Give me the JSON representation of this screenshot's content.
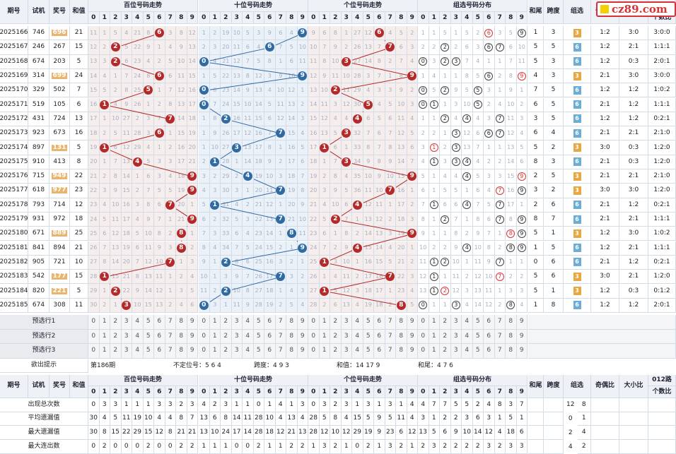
{
  "logo": {
    "text": "cz89.com"
  },
  "header": {
    "issue": "期号",
    "trial": "试机",
    "prize": "奖号",
    "sum": "和值",
    "hundreds": "百位号码走势",
    "tens": "十位号码走势",
    "units": "个位号码走势",
    "group_dist": "组选号码分布",
    "sum_tail": "和尾",
    "span": "跨度",
    "group": "组选",
    "odd_even": "奇偶比",
    "big_small": "大小比",
    "mod012": "012路",
    "mod012_b": "个数比"
  },
  "digits": [
    "0",
    "1",
    "2",
    "3",
    "4",
    "5",
    "6",
    "7",
    "8",
    "9"
  ],
  "chart_data": {
    "type": "table",
    "rows": [
      {
        "issue": "2025166",
        "trial": "746",
        "prize": "696",
        "sum": 21,
        "hl": true,
        "h": "11 1 5 4 21 8 6 3 8 12",
        "t": "1 2 19 10 5 3 9 6 4 9",
        "u": "9 6 8 1 27 12 6 4 5 2",
        "g": "1 1 5 1 5 2 6 3 5 9",
        "rg": [
          6
        ],
        "tail": "1",
        "span": "3",
        "grp": "3",
        "oe": "1:2",
        "bs": "3:0",
        "m": "3:0:0"
      },
      {
        "issue": "2025167",
        "trial": "246",
        "prize": "267",
        "sum": 15,
        "hl": false,
        "h": "12 2 2 5 22 9 1 4 9 13",
        "t": "2 3 20 11 6 4 6 7 5 10",
        "u": "10 7 9 2 26 13 7 7 6 3",
        "g": "2 2 6 2 6 3 6 7 6 10",
        "rg": [],
        "tail": "5",
        "span": "5",
        "grp": "6",
        "oe": "1:2",
        "bs": "2:1",
        "m": "1:1:1"
      },
      {
        "issue": "2025168",
        "trial": "674",
        "prize": "203",
        "sum": 5,
        "hl": false,
        "h": "13 3 2 6 23 4 2 5 10 14",
        "t": "0 4 21 12 7 5 8 1 6 11",
        "u": "11 8 10 3 27 14 8 2 7 4",
        "g": "0 3 2 3 7 4 1 1 7 11",
        "rg": [],
        "tail": "5",
        "span": "3",
        "grp": "6",
        "oe": "1:2",
        "bs": "0:3",
        "m": "2:0:1"
      },
      {
        "issue": "2025169",
        "trial": "314",
        "prize": "699",
        "sum": 24,
        "hl": true,
        "h": "14 4 1 7 24 8 6 6 11 15",
        "t": "1 5 22 13 8 12 3 9 10 9",
        "u": "12 9 11 10 28 3 7 1 8 9",
        "g": "1 4 1 1 8 5 6 2 8 9",
        "rg": [
          9
        ],
        "tail": "4",
        "span": "3",
        "grp": "3",
        "oe": "2:1",
        "bs": "3:0",
        "m": "3:0:0"
      },
      {
        "issue": "2025170",
        "trial": "329",
        "prize": "502",
        "sum": 7,
        "hl": false,
        "h": "15 5 2 8 25 5 1 7 12 16",
        "t": "0 6 23 14 9 13 4 10 12 1",
        "u": "13 10 2 11 29 4 3 3 9 2",
        "g": "0 5 2 9 5 6 3 1 9 1",
        "rg": [],
        "tail": "7",
        "span": "5",
        "grp": "6",
        "oe": "1:2",
        "bs": "1:2",
        "m": "1:0:2"
      },
      {
        "issue": "2025171",
        "trial": "519",
        "prize": "105",
        "sum": 6,
        "hl": false,
        "h": "16 1 4 9 26 1 2 8 13 17",
        "t": "0 7 24 15 10 14 5 11 13 2",
        "u": "14 11 3 12 30 5 4 5 10 3",
        "g": "0 1 1 3 10 5 2 4 10 2",
        "rg": [],
        "tail": "6",
        "span": "5",
        "grp": "6",
        "oe": "2:1",
        "bs": "1:2",
        "m": "1:1:1"
      },
      {
        "issue": "2025172",
        "trial": "431",
        "prize": "724",
        "sum": 13,
        "hl": false,
        "h": "17 1 10 27 2 3 7 1 14 18",
        "t": "1 8 2 16 11 15 6 12 14 3",
        "u": "15 12 4 4 31 6 5 6 11 4",
        "g": "1 1 2 4 11 4 3 7 11 3",
        "rg": [],
        "tail": "3",
        "span": "5",
        "grp": "6",
        "oe": "1:2",
        "bs": "1:2",
        "m": "0:2:1"
      },
      {
        "issue": "2025173",
        "trial": "923",
        "prize": "673",
        "sum": 16,
        "hl": false,
        "h": "18 2 5 11 28 3 6 1 15 19",
        "t": "1 9 26 17 12 16 7 7 15 4",
        "u": "16 13 5 3 32 7 6 7 12 5",
        "g": "2 2 1 3 12 6 8 7 12 4",
        "rg": [],
        "tail": "6",
        "span": "4",
        "grp": "6",
        "oe": "2:1",
        "bs": "2:1",
        "m": "2:1:0"
      },
      {
        "issue": "2025174",
        "trial": "897",
        "prize": "131",
        "sum": 5,
        "hl": true,
        "h": "19 1 6 12 29 4 1 2 16 20",
        "t": "1 10 27 3 13 17 8 1 16 5",
        "u": "17 1 6 1 33 8 7 8 13 6",
        "g": "3 1 2 3 13 7 1 1 13 5",
        "rg": [
          1
        ],
        "tail": "5",
        "span": "2",
        "grp": "3",
        "oe": "3:0",
        "bs": "0:3",
        "m": "1:2:0"
      },
      {
        "issue": "2025175",
        "trial": "910",
        "prize": "413",
        "sum": 8,
        "hl": false,
        "h": "20 1 7 13 4 5 3 3 17 21",
        "t": "2 1 28 1 14 18 9 2 17 6",
        "u": "18 1 7 3 34 9 8 9 14 7",
        "g": "4 1 3 3 4 4 2 2 14 6",
        "rg": [],
        "tail": "8",
        "span": "3",
        "grp": "6",
        "oe": "2:1",
        "bs": "0:3",
        "m": "1:2:0"
      },
      {
        "issue": "2025176",
        "trial": "715",
        "prize": "949",
        "sum": 22,
        "hl": true,
        "h": "21 2 8 14 1 6 3 4 18 9",
        "t": "3 2 29 2 4 19 10 3 18 7",
        "u": "19 2 8 4 35 10 9 10 15 9",
        "g": "5 1 4 4 4 5 3 3 15 9",
        "rg": [
          9
        ],
        "tail": "2",
        "span": "5",
        "grp": "3",
        "oe": "2:1",
        "bs": "2:1",
        "m": "2:1:0"
      },
      {
        "issue": "2025177",
        "trial": "618",
        "prize": "977",
        "sum": 23,
        "hl": true,
        "h": "22 3 9 15 2 7 5 5 19 9",
        "t": "4 3 30 3 1 20 11 7 19 8",
        "u": "20 3 9 5 36 11 10 7 16 1",
        "g": "6 1 5 5 1 6 4 7 16 9",
        "rg": [
          7
        ],
        "tail": "3",
        "span": "2",
        "grp": "3",
        "oe": "3:0",
        "bs": "3:0",
        "m": "1:2:0"
      },
      {
        "issue": "2025178",
        "trial": "793",
        "prize": "714",
        "sum": 12,
        "hl": false,
        "h": "23 4 10 16 3 8 6 7 20 1",
        "t": "5 1 31 4 2 21 12 1 20 9",
        "u": "21 4 10 6 4 12 11 1 17 2",
        "g": "7 1 6 6 4 7 5 7 17 1",
        "rg": [],
        "tail": "2",
        "span": "6",
        "grp": "6",
        "oe": "2:1",
        "bs": "1:2",
        "m": "0:2:1"
      },
      {
        "issue": "2025179",
        "trial": "931",
        "prize": "972",
        "sum": 18,
        "hl": false,
        "h": "24 5 11 17 4 9 7 1 21 9",
        "t": "6 2 32 5 3 22 13 7 21 10",
        "u": "22 5 2 7 1 13 12 2 18 3",
        "g": "8 1 2 7 1 8 6 7 8 9",
        "rg": [],
        "tail": "8",
        "span": "7",
        "grp": "6",
        "oe": "2:1",
        "bs": "2:1",
        "m": "1:1:1"
      },
      {
        "issue": "2025180",
        "trial": "671",
        "prize": "889",
        "sum": 25,
        "hl": true,
        "h": "25 6 12 18 5 10 8 2 8 1",
        "t": "7 3 33 6 4 23 14 1 8 11",
        "u": "23 6 1 8 2 14 13 3 19 9",
        "g": "9 1 1 8 2 9 7 1 8 9",
        "rg": [
          8
        ],
        "tail": "5",
        "span": "1",
        "grp": "3",
        "oe": "1:2",
        "bs": "3:0",
        "m": "1:0:2"
      },
      {
        "issue": "2025181",
        "trial": "841",
        "prize": "894",
        "sum": 21,
        "hl": false,
        "h": "26 7 13 19 6 11 9 3 8 2",
        "t": "8 4 34 7 5 24 15 2 1 9",
        "u": "24 7 2 9 4 15 14 4 20 1",
        "g": "10 2 2 9 4 10 8 2 8 9",
        "rg": [],
        "tail": "1",
        "span": "5",
        "grp": "6",
        "oe": "1:2",
        "bs": "2:1",
        "m": "1:1:1"
      },
      {
        "issue": "2025182",
        "trial": "905",
        "prize": "721",
        "sum": 10,
        "hl": false,
        "h": "27 8 14 20 7 12 10 7 1 3",
        "t": "9 1 2 8 6 25 16 3 2 1",
        "u": "25 1 3 10 1 16 15 5 21 2",
        "g": "11 1 2 10 1 11 9 7 1 1",
        "rg": [],
        "tail": "0",
        "span": "6",
        "grp": "6",
        "oe": "2:1",
        "bs": "1:2",
        "m": "0:2:1"
      },
      {
        "issue": "2025183",
        "trial": "542",
        "prize": "177",
        "sum": 15,
        "hl": true,
        "h": "28 1 15 21 8 13 11 1 2 4",
        "t": "10 1 3 9 7 26 17 7 3 2",
        "u": "26 1 4 11 2 17 16 7 22 3",
        "g": "12 1 1 11 2 12 10 7 2 2",
        "rg": [
          7
        ],
        "tail": "5",
        "span": "6",
        "grp": "3",
        "oe": "3:0",
        "bs": "2:1",
        "m": "1:2:0"
      },
      {
        "issue": "2025184",
        "trial": "820",
        "prize": "221",
        "sum": 5,
        "hl": true,
        "h": "29 1 2 22 9 14 12 1 3 5",
        "t": "11 2 2 10 8 27 18 1 4 3",
        "u": "27 1 5 12 3 18 17 1 23 4",
        "g": "13 1 2 12 3 13 11 1 3 3",
        "rg": [
          2
        ],
        "tail": "5",
        "span": "1",
        "grp": "3",
        "oe": "1:2",
        "bs": "0:3",
        "m": "0:1:2"
      },
      {
        "issue": "2025185",
        "trial": "674",
        "prize": "308",
        "sum": 11,
        "hl": false,
        "h": "30 2 1 3 10 15 13 2 4 6",
        "t": "0 3 1 11 9 28 19 2 5 4",
        "u": "28 2 6 13 4 19 18 2 8 5",
        "g": "0 1 1 3 4 14 12 2 8 4",
        "rg": [],
        "tail": "1",
        "span": "8",
        "grp": "6",
        "oe": "1:2",
        "bs": "1:2",
        "m": "2:0:1"
      }
    ]
  },
  "select_rows": [
    "预选行1",
    "预选行2",
    "预选行3"
  ],
  "hint": {
    "label": "欲出提示",
    "issue": "第186期",
    "fixed": "不定位号：5 6 4",
    "span": "跨度：4 9 3",
    "sum": "和值：14 17 9",
    "tail": "和尾：4 7 6"
  },
  "stats": [
    {
      "label": "出现总次数",
      "vals": "0 3 3 1 1 1 3 3 2 3 4 2 3 1 1 0 1 4 1 3 0 3 2 3 1 3 1 3 1 4 4 7 7 5 5 2 4 8 3 7",
      "grp": [
        "12",
        "8"
      ]
    },
    {
      "label": "平均遗漏值",
      "vals": "30 4 5 11 19 10 4 4 8 7 13 6 8 14 11 28 10 4 13 4 28 5 8 4 15 5 9 5 11 4 3 1 2 2 3 6 3 1 5 1",
      "grp": [
        "0",
        "1"
      ]
    },
    {
      "label": "最大遗漏值",
      "vals": "30 8 15 22 29 15 12 8 21 21 13 10 24 17 14 28 18 12 21 13 28 12 10 12 29 19 9 23 6 12 13 5 6 9 10 14 12 4 18 6",
      "grp": [
        "2",
        "4"
      ]
    },
    {
      "label": "最大连出数",
      "vals": "0 2 0 0 0 2 0 0 2 2 1 1 1 0 0 2 1 1 2 2 1 3 2 1 0 2 1 3 2 1 2 3 2 2 2 2 3 2 3 3",
      "grp": [
        "4",
        "2"
      ]
    }
  ]
}
